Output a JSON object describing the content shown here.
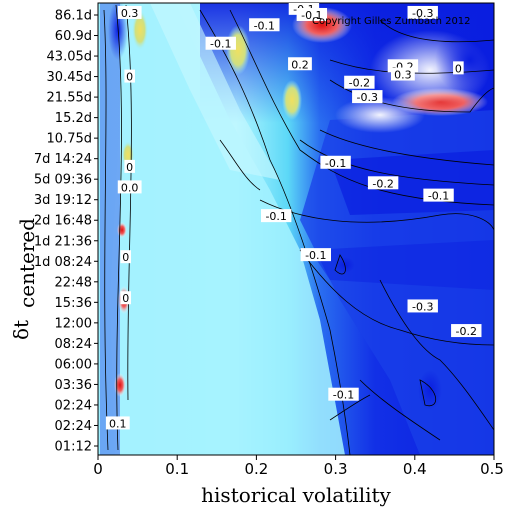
{
  "chart_data": {
    "type": "heatmap",
    "xlabel": "historical volatility",
    "ylabel_main": "δt",
    "ylabel_sub": "centered",
    "xlim": [
      0,
      0.5
    ],
    "x_ticks": [
      "0",
      "0.1",
      "0.2",
      "0.3",
      "0.4",
      "0.5"
    ],
    "y_ticks": [
      "86.1d",
      "60.9d",
      "43.05d",
      "30.45d",
      "21.55d",
      "15.2d",
      "10.75d",
      "7d 14:24",
      "5d 09:36",
      "3d 19:12",
      "2d 16:48",
      "1d 21:36",
      "1d 08:24",
      "22:48",
      "15:36",
      "12:00",
      "08:24",
      "06:00",
      "03:36",
      "02:24",
      "02:24",
      "01:12"
    ],
    "copyright": "Copyright Gilles Zumbach 2012",
    "colors": {
      "deep_blue": "#0a1ee0",
      "mid_blue": "#2a5ef0",
      "light_cyan": "#9ef0ff",
      "cyan": "#4fd8f5",
      "yellow": "#f0e060",
      "red": "#e01010",
      "white": "#ffffff"
    },
    "contour_labels": [
      {
        "text": "0.3",
        "x": 0.04,
        "y": 21.1
      },
      {
        "text": "0",
        "x": 0.04,
        "y": 18.0
      },
      {
        "text": "0",
        "x": 0.04,
        "y": 13.6
      },
      {
        "text": "0.0",
        "x": 0.04,
        "y": 12.6
      },
      {
        "text": "0",
        "x": 0.035,
        "y": 9.2
      },
      {
        "text": "0",
        "x": 0.035,
        "y": 7.2
      },
      {
        "text": "0.1",
        "x": 0.025,
        "y": 1.1
      },
      {
        "text": "-0.1",
        "x": 0.155,
        "y": 19.6
      },
      {
        "text": "-0.1",
        "x": 0.21,
        "y": 20.5
      },
      {
        "text": "0.2",
        "x": 0.255,
        "y": 18.6
      },
      {
        "text": "-0.1",
        "x": 0.26,
        "y": 21.3
      },
      {
        "text": "-0.1",
        "x": 0.27,
        "y": 21.0
      },
      {
        "text": "-0.2",
        "x": 0.33,
        "y": 17.7
      },
      {
        "text": "-0.3",
        "x": 0.34,
        "y": 17.0
      },
      {
        "text": "-0.2",
        "x": 0.385,
        "y": 18.5
      },
      {
        "text": "0.3",
        "x": 0.385,
        "y": 18.1
      },
      {
        "text": "0",
        "x": 0.455,
        "y": 18.4
      },
      {
        "text": "-0.3",
        "x": 0.41,
        "y": 21.1
      },
      {
        "text": "-0.1",
        "x": 0.3,
        "y": 13.8
      },
      {
        "text": "-0.2",
        "x": 0.36,
        "y": 12.8
      },
      {
        "text": "-0.1",
        "x": 0.43,
        "y": 12.2
      },
      {
        "text": "-0.1",
        "x": 0.225,
        "y": 11.2
      },
      {
        "text": "-0.1",
        "x": 0.275,
        "y": 9.3
      },
      {
        "text": "-0.3",
        "x": 0.41,
        "y": 6.8
      },
      {
        "text": "-0.2",
        "x": 0.465,
        "y": 5.6
      },
      {
        "text": "-0.1",
        "x": 0.31,
        "y": 2.5
      }
    ]
  }
}
